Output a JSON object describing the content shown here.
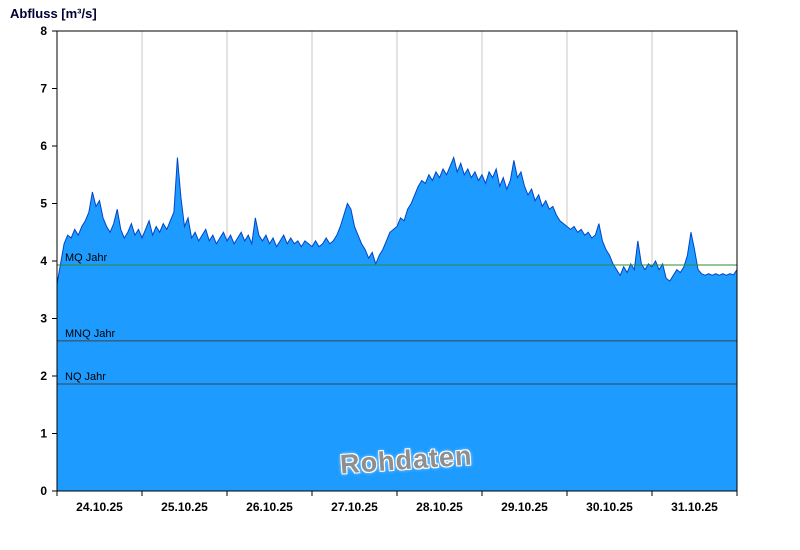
{
  "title": "Abfluss [m³/s]",
  "watermark": "Rohdaten",
  "chart_data": {
    "type": "area",
    "title": "Abfluss [m³/s]",
    "ylabel": "Abfluss [m³/s]",
    "series_name": "Rohdaten",
    "ylim": [
      0,
      8
    ],
    "y_ticks": [
      0,
      1,
      2,
      3,
      4,
      5,
      6,
      7,
      8
    ],
    "x_tick_labels": [
      "24.10.25",
      "25.10.25",
      "26.10.25",
      "27.10.25",
      "28.10.25",
      "29.10.25",
      "30.10.25",
      "31.10.25"
    ],
    "x_range_days": 8,
    "sample_interval_hours": 1,
    "grid": "vertical-day-lines",
    "legend_position": "none",
    "colors": {
      "fill": "#1E9BFF",
      "line": "#0045C8",
      "grid": "#c8c8c8",
      "border": "#000000",
      "axis_text": "#000000"
    },
    "reference_lines": [
      {
        "label": "MQ Jahr",
        "value": 3.93,
        "color": "#2e8b2e"
      },
      {
        "label": "MNQ Jahr",
        "value": 2.61,
        "color": "#404040"
      },
      {
        "label": "NQ Jahr",
        "value": 1.86,
        "color": "#404040"
      }
    ],
    "values": [
      3.6,
      3.95,
      4.3,
      4.45,
      4.4,
      4.55,
      4.45,
      4.6,
      4.7,
      4.85,
      5.2,
      4.95,
      5.05,
      4.75,
      4.6,
      4.5,
      4.65,
      4.9,
      4.55,
      4.4,
      4.5,
      4.65,
      4.45,
      4.55,
      4.4,
      4.55,
      4.7,
      4.45,
      4.6,
      4.5,
      4.65,
      4.55,
      4.7,
      4.85,
      5.8,
      5.1,
      4.6,
      4.75,
      4.4,
      4.5,
      4.35,
      4.45,
      4.55,
      4.35,
      4.45,
      4.3,
      4.4,
      4.5,
      4.35,
      4.45,
      4.3,
      4.4,
      4.5,
      4.35,
      4.45,
      4.3,
      4.75,
      4.45,
      4.35,
      4.45,
      4.3,
      4.4,
      4.25,
      4.35,
      4.45,
      4.3,
      4.4,
      4.3,
      4.35,
      4.25,
      4.35,
      4.3,
      4.25,
      4.35,
      4.25,
      4.3,
      4.4,
      4.3,
      4.35,
      4.45,
      4.6,
      4.8,
      5.0,
      4.9,
      4.6,
      4.45,
      4.3,
      4.2,
      4.05,
      4.15,
      3.95,
      4.1,
      4.2,
      4.35,
      4.5,
      4.55,
      4.6,
      4.75,
      4.7,
      4.9,
      5.0,
      5.15,
      5.3,
      5.4,
      5.35,
      5.5,
      5.4,
      5.55,
      5.45,
      5.6,
      5.5,
      5.65,
      5.8,
      5.55,
      5.7,
      5.5,
      5.6,
      5.45,
      5.55,
      5.4,
      5.5,
      5.35,
      5.55,
      5.45,
      5.6,
      5.3,
      5.45,
      5.25,
      5.4,
      5.75,
      5.45,
      5.55,
      5.3,
      5.15,
      5.25,
      5.05,
      5.15,
      4.95,
      5.05,
      4.9,
      4.95,
      4.8,
      4.7,
      4.65,
      4.6,
      4.55,
      4.6,
      4.5,
      4.55,
      4.45,
      4.5,
      4.4,
      4.45,
      4.65,
      4.35,
      4.2,
      4.1,
      3.95,
      3.85,
      3.75,
      3.9,
      3.8,
      3.95,
      3.85,
      4.35,
      3.95,
      3.85,
      3.95,
      3.9,
      4.0,
      3.85,
      3.95,
      3.7,
      3.65,
      3.75,
      3.85,
      3.8,
      3.9,
      4.1,
      4.5,
      4.2,
      3.85,
      3.78,
      3.75,
      3.78,
      3.75,
      3.78,
      3.75,
      3.78,
      3.75,
      3.78,
      3.76,
      3.85
    ]
  }
}
